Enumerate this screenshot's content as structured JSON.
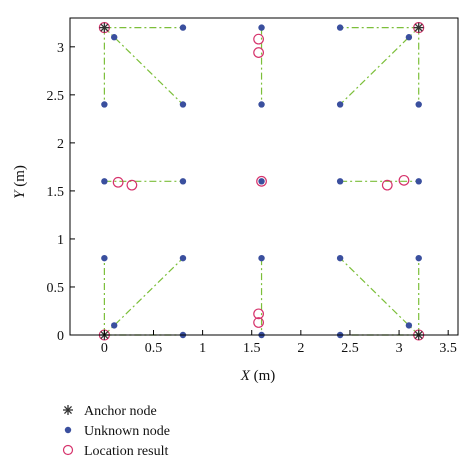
{
  "chart_data": {
    "type": "scatter",
    "xlabel_italic": "X",
    "xlabel_unit": " (m)",
    "ylabel_italic": "Y",
    "ylabel_unit": " (m)",
    "xlim": [
      -0.35,
      3.6
    ],
    "ylim": [
      0,
      3.3
    ],
    "xticks": [
      {
        "value": 0,
        "label": "0"
      },
      {
        "value": 0.5,
        "label": "0.5"
      },
      {
        "value": 1,
        "label": "1"
      },
      {
        "value": 1.5,
        "label": "1.5"
      },
      {
        "value": 2,
        "label": "2"
      },
      {
        "value": 2.5,
        "label": "2.5"
      },
      {
        "value": 3,
        "label": "3"
      },
      {
        "value": 3.5,
        "label": "3.5"
      }
    ],
    "yticks": [
      {
        "value": 0,
        "label": "0"
      },
      {
        "value": 0.5,
        "label": "0.5"
      },
      {
        "value": 1,
        "label": "1"
      },
      {
        "value": 1.5,
        "label": "1.5"
      },
      {
        "value": 2,
        "label": "2"
      },
      {
        "value": 2.5,
        "label": "2.5"
      },
      {
        "value": 3,
        "label": "3"
      }
    ],
    "grid": false,
    "legend_position": "below",
    "colors": {
      "anchor": "#333333",
      "unknown": "#3a4f9e",
      "result": "#d6336c",
      "link": "#7cbf3a"
    },
    "series": [
      {
        "name": "Anchor node",
        "marker": "asterisk",
        "points": [
          [
            0,
            0
          ],
          [
            3.2,
            0
          ],
          [
            0,
            3.2
          ],
          [
            3.2,
            3.2
          ]
        ]
      },
      {
        "name": "Unknown node",
        "marker": "dot",
        "points": [
          [
            0,
            0.8
          ],
          [
            0.8,
            0.8
          ],
          [
            0.1,
            0.1
          ],
          [
            0.8,
            0
          ],
          [
            1.6,
            0.8
          ],
          [
            1.6,
            0
          ],
          [
            3.2,
            0.8
          ],
          [
            2.4,
            0.8
          ],
          [
            3.1,
            0.1
          ],
          [
            2.4,
            0
          ],
          [
            0,
            1.6
          ],
          [
            0.8,
            1.6
          ],
          [
            1.6,
            1.6
          ],
          [
            2.4,
            1.6
          ],
          [
            3.2,
            1.6
          ],
          [
            0,
            2.4
          ],
          [
            0.8,
            2.4
          ],
          [
            0.1,
            3.1
          ],
          [
            0.8,
            3.2
          ],
          [
            1.6,
            2.4
          ],
          [
            1.6,
            3.2
          ],
          [
            3.2,
            2.4
          ],
          [
            2.4,
            2.4
          ],
          [
            3.1,
            3.1
          ],
          [
            2.4,
            3.2
          ]
        ]
      },
      {
        "name": "Location result",
        "marker": "circle",
        "points": [
          [
            0.14,
            1.59
          ],
          [
            0.28,
            1.56
          ],
          [
            1.57,
            3.08
          ],
          [
            1.57,
            2.94
          ],
          [
            1.6,
            1.6
          ],
          [
            1.57,
            0.22
          ],
          [
            1.57,
            0.13
          ],
          [
            2.88,
            1.56
          ],
          [
            3.05,
            1.61
          ]
        ]
      }
    ],
    "links": [
      [
        [
          0,
          3.2
        ],
        [
          0,
          2.4
        ]
      ],
      [
        [
          0,
          3.2
        ],
        [
          0.8,
          2.4
        ]
      ],
      [
        [
          0,
          3.2
        ],
        [
          0.8,
          3.2
        ]
      ],
      [
        [
          3.2,
          3.2
        ],
        [
          3.2,
          2.4
        ]
      ],
      [
        [
          3.2,
          3.2
        ],
        [
          2.4,
          2.4
        ]
      ],
      [
        [
          3.2,
          3.2
        ],
        [
          2.4,
          3.2
        ]
      ],
      [
        [
          0,
          0
        ],
        [
          0,
          0.8
        ]
      ],
      [
        [
          0,
          0
        ],
        [
          0.8,
          0.8
        ]
      ],
      [
        [
          0,
          0
        ],
        [
          0.8,
          0
        ]
      ],
      [
        [
          3.2,
          0
        ],
        [
          3.2,
          0.8
        ]
      ],
      [
        [
          3.2,
          0
        ],
        [
          2.4,
          0.8
        ]
      ],
      [
        [
          3.2,
          0
        ],
        [
          2.4,
          0
        ]
      ],
      [
        [
          1.6,
          3.2
        ],
        [
          1.6,
          2.4
        ]
      ],
      [
        [
          1.6,
          0.8
        ],
        [
          1.6,
          0
        ]
      ],
      [
        [
          0,
          1.6
        ],
        [
          0.8,
          1.6
        ]
      ],
      [
        [
          2.4,
          1.6
        ],
        [
          3.2,
          1.6
        ]
      ]
    ]
  }
}
